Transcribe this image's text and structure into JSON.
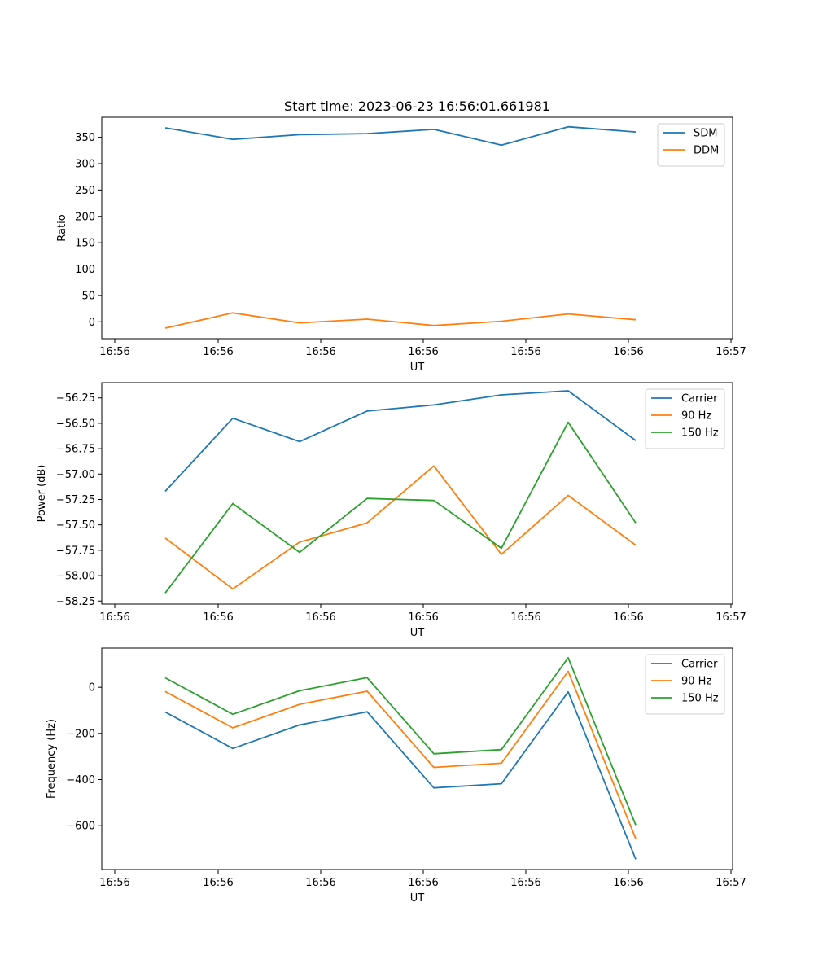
{
  "chart_data": [
    {
      "type": "line",
      "title": "Start time: 2023-06-23 16:56:01.661981",
      "xlabel": "UT",
      "ylabel": "Ratio",
      "x_tick_labels": [
        "16:56",
        "16:56",
        "16:56",
        "16:56",
        "16:56",
        "16:56",
        "16:56",
        "16:57"
      ],
      "y_ticks": [
        0,
        50,
        100,
        150,
        200,
        250,
        300,
        350
      ],
      "y_tick_labels": [
        "0",
        "50",
        "100",
        "150",
        "200",
        "250",
        "300",
        "350"
      ],
      "ylim": [
        -32,
        388
      ],
      "legend_position": "top-right",
      "series": [
        {
          "name": "SDM",
          "color": "#1f77b4",
          "values": [
            368,
            346,
            355,
            357,
            365,
            335,
            370,
            360
          ]
        },
        {
          "name": "DDM",
          "color": "#ff7f0e",
          "values": [
            -12,
            17,
            -2,
            5,
            -7,
            1,
            15,
            4
          ]
        }
      ]
    },
    {
      "type": "line",
      "title": "",
      "xlabel": "UT",
      "ylabel": "Power (dB)",
      "x_tick_labels": [
        "16:56",
        "16:56",
        "16:56",
        "16:56",
        "16:56",
        "16:56",
        "16:56",
        "16:57"
      ],
      "y_ticks": [
        -58.25,
        -58.0,
        -57.75,
        -57.5,
        -57.25,
        -57.0,
        -56.75,
        -56.5,
        -56.25
      ],
      "y_tick_labels": [
        "−58.25",
        "−58.00",
        "−57.75",
        "−57.50",
        "−57.25",
        "−57.00",
        "−56.75",
        "−56.50",
        "−56.25"
      ],
      "ylim": [
        -58.28,
        -56.1
      ],
      "legend_position": "top-right",
      "series": [
        {
          "name": "Carrier",
          "color": "#1f77b4",
          "values": [
            -57.17,
            -56.45,
            -56.68,
            -56.38,
            -56.32,
            -56.22,
            -56.18,
            -56.67
          ]
        },
        {
          "name": "90 Hz",
          "color": "#ff7f0e",
          "values": [
            -57.63,
            -58.13,
            -57.67,
            -57.48,
            -56.92,
            -57.79,
            -57.21,
            -57.7
          ]
        },
        {
          "name": "150 Hz",
          "color": "#2ca02c",
          "values": [
            -58.17,
            -57.29,
            -57.77,
            -57.24,
            -57.26,
            -57.73,
            -56.49,
            -57.48
          ]
        }
      ]
    },
    {
      "type": "line",
      "title": "",
      "xlabel": "UT",
      "ylabel": "Frequency (Hz)",
      "x_tick_labels": [
        "16:56",
        "16:56",
        "16:56",
        "16:56",
        "16:56",
        "16:56",
        "16:56",
        "16:57"
      ],
      "y_ticks": [
        -600,
        -400,
        -200,
        0
      ],
      "y_tick_labels": [
        "−600",
        "−400",
        "−200",
        "0"
      ],
      "ylim": [
        -790,
        170
      ],
      "legend_position": "top-right",
      "series": [
        {
          "name": "Carrier",
          "color": "#1f77b4",
          "values": [
            -107,
            -265,
            -163,
            -106,
            -436,
            -418,
            -20,
            -745
          ]
        },
        {
          "name": "90 Hz",
          "color": "#ff7f0e",
          "values": [
            -18,
            -176,
            -74,
            -17,
            -347,
            -329,
            69,
            -656
          ]
        },
        {
          "name": "150 Hz",
          "color": "#2ca02c",
          "values": [
            41,
            -117,
            -15,
            42,
            -288,
            -270,
            128,
            -597
          ]
        }
      ]
    }
  ]
}
